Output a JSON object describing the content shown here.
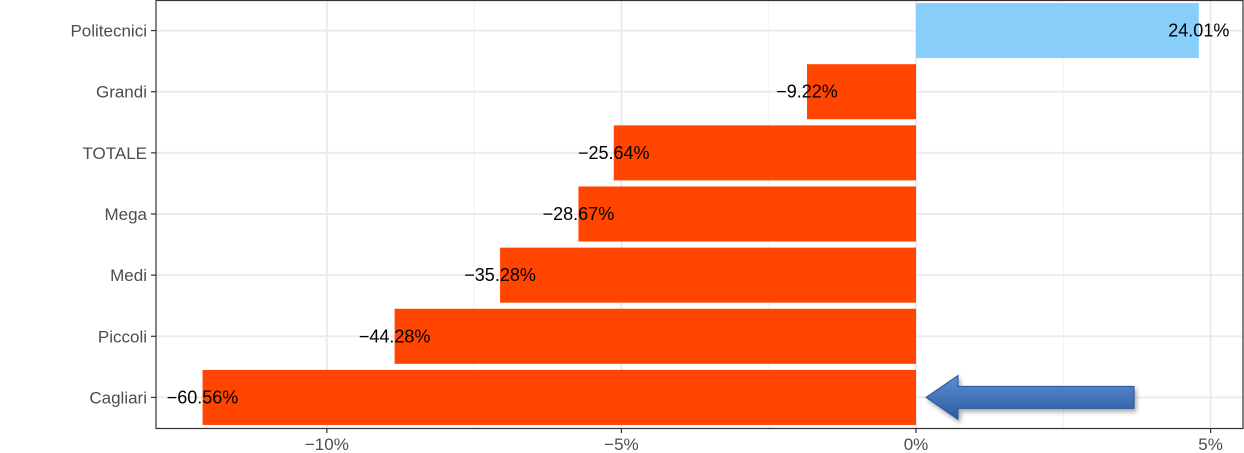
{
  "chart_data": {
    "type": "bar",
    "orientation": "horizontal",
    "categories": [
      "Politecnici",
      "Grandi",
      "TOTALE",
      "Mega",
      "Medi",
      "Piccoli",
      "Cagliari"
    ],
    "values": [
      4.8,
      -1.85,
      -5.13,
      -5.73,
      -7.06,
      -8.85,
      -12.11
    ],
    "data_labels": [
      "24.01%",
      "−9.22%",
      "−25.64%",
      "−28.67%",
      "−35.28%",
      "−44.28%",
      "−60.56%"
    ],
    "xlim": [
      -12.9,
      5.55
    ],
    "x_ticks": [
      -10,
      -5,
      0,
      5
    ],
    "x_tick_labels": [
      "−10%",
      "−5%",
      "0%",
      "5%"
    ],
    "grid": true,
    "legend": "none",
    "colors": {
      "positive": "#87CEFA",
      "negative": "#FF4500",
      "arrow": "#3A6FB8"
    },
    "annotation": {
      "type": "arrow",
      "points_to": "Cagliari",
      "icon": "left-arrow"
    }
  }
}
